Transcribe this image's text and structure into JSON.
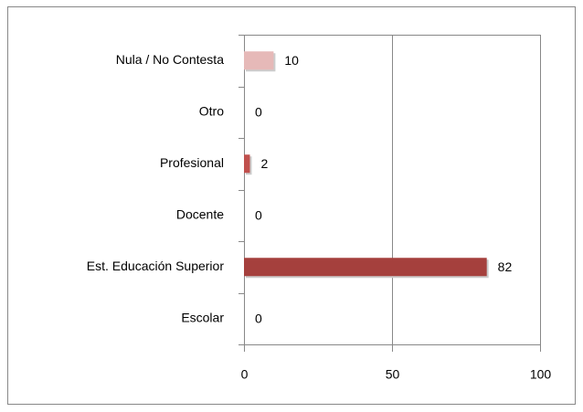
{
  "chart_data": {
    "type": "bar",
    "orientation": "horizontal",
    "categories": [
      "Nula / No Contesta",
      "Otro",
      "Profesional",
      "Docente",
      "Est. Educación Superior",
      "Escolar"
    ],
    "values": [
      10,
      0,
      2,
      0,
      82,
      0
    ],
    "colors": [
      "#e6b9b8",
      "#c0504d",
      "#c0504d",
      "#c0504d",
      "#a5403d",
      "#c0504d"
    ],
    "xlim": [
      0,
      100
    ],
    "xticks": [
      0,
      50,
      100
    ],
    "grid": true
  }
}
